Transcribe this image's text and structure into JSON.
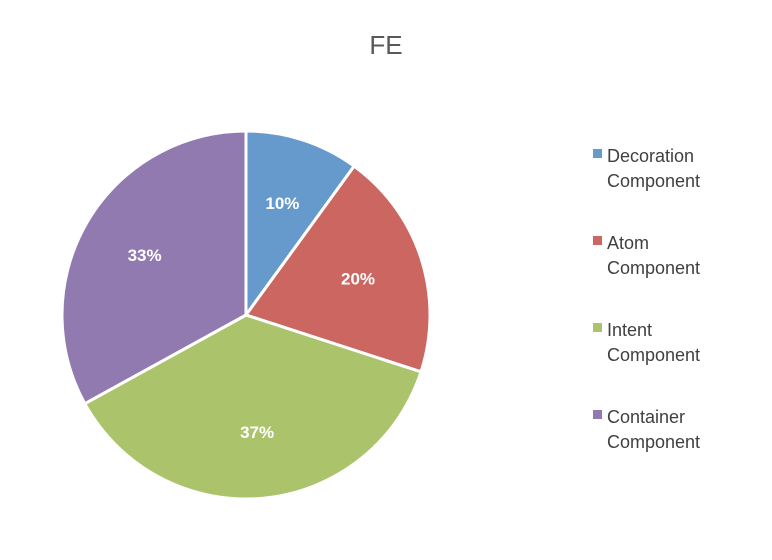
{
  "chart_data": {
    "type": "pie",
    "title": "FE",
    "legend_position": "right",
    "slices": [
      {
        "label": "Decoration Component",
        "label_lines": [
          "Decoration",
          "Component"
        ],
        "value": 10,
        "display": "10%",
        "color": "#6699CC"
      },
      {
        "label": "Atom Component",
        "label_lines": [
          "Atom",
          "Component"
        ],
        "value": 20,
        "display": "20%",
        "color": "#CC6660"
      },
      {
        "label": "Intent Component",
        "label_lines": [
          "Intent",
          "Component"
        ],
        "value": 37,
        "display": "37%",
        "color": "#ABC46C"
      },
      {
        "label": "Container Component",
        "label_lines": [
          "Container",
          "Component"
        ],
        "value": 33,
        "display": "33%",
        "color": "#917AB0"
      }
    ]
  }
}
